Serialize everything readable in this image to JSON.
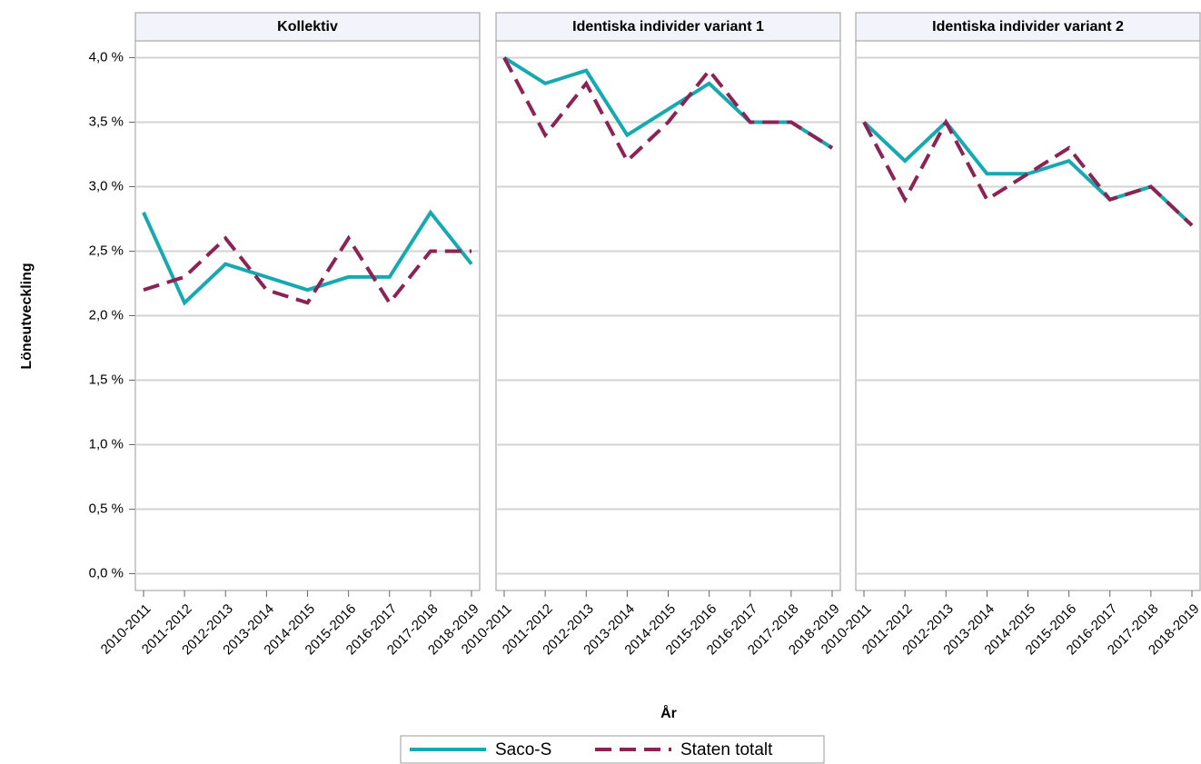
{
  "chart_data": {
    "type": "line",
    "ylabel": "Löneutveckling",
    "xlabel": "År",
    "ylim": [
      -0.13,
      4.13
    ],
    "yticks": [
      {
        "value": 0,
        "label": "0,0 %"
      },
      {
        "value": 0.5,
        "label": "0,5 %"
      },
      {
        "value": 1,
        "label": "1,0 %"
      },
      {
        "value": 1.5,
        "label": "1,5 %"
      },
      {
        "value": 2,
        "label": "2,0 %"
      },
      {
        "value": 2.5,
        "label": "2,5 %"
      },
      {
        "value": 3,
        "label": "3,0 %"
      },
      {
        "value": 3.5,
        "label": "3,5 %"
      },
      {
        "value": 4,
        "label": "4,0 %"
      }
    ],
    "grid": true,
    "legend": "bottom",
    "categories": [
      "2010-2011",
      "2011-2012",
      "2012-2013",
      "2013-2014",
      "2014-2015",
      "2015-2016",
      "2016-2017",
      "2017-2018",
      "2018-2019"
    ],
    "series": [
      {
        "name": "Saco-S",
        "color": "#17a9b1",
        "dash": false
      },
      {
        "name": "Staten totalt",
        "color": "#8c2355",
        "dash": true
      }
    ],
    "panels": [
      {
        "title": "Kollektiv",
        "series": [
          {
            "values": [
              2.8,
              2.1,
              2.4,
              2.3,
              2.2,
              2.3,
              2.3,
              2.8,
              2.4
            ]
          },
          {
            "values": [
              2.2,
              2.3,
              2.6,
              2.2,
              2.1,
              2.6,
              2.1,
              2.5,
              2.5
            ]
          }
        ]
      },
      {
        "title": "Identiska individer variant 1",
        "series": [
          {
            "values": [
              4.0,
              3.8,
              3.9,
              3.4,
              3.6,
              3.8,
              3.5,
              3.5,
              3.3
            ]
          },
          {
            "values": [
              4.0,
              3.4,
              3.8,
              3.2,
              3.5,
              3.9,
              3.5,
              3.5,
              3.3
            ]
          }
        ]
      },
      {
        "title": "Identiska individer variant 2",
        "series": [
          {
            "values": [
              3.5,
              3.2,
              3.5,
              3.1,
              3.1,
              3.2,
              2.9,
              3.0,
              2.7
            ]
          },
          {
            "values": [
              3.5,
              2.9,
              3.5,
              2.9,
              3.1,
              3.3,
              2.9,
              3.0,
              2.7
            ]
          }
        ]
      }
    ]
  }
}
